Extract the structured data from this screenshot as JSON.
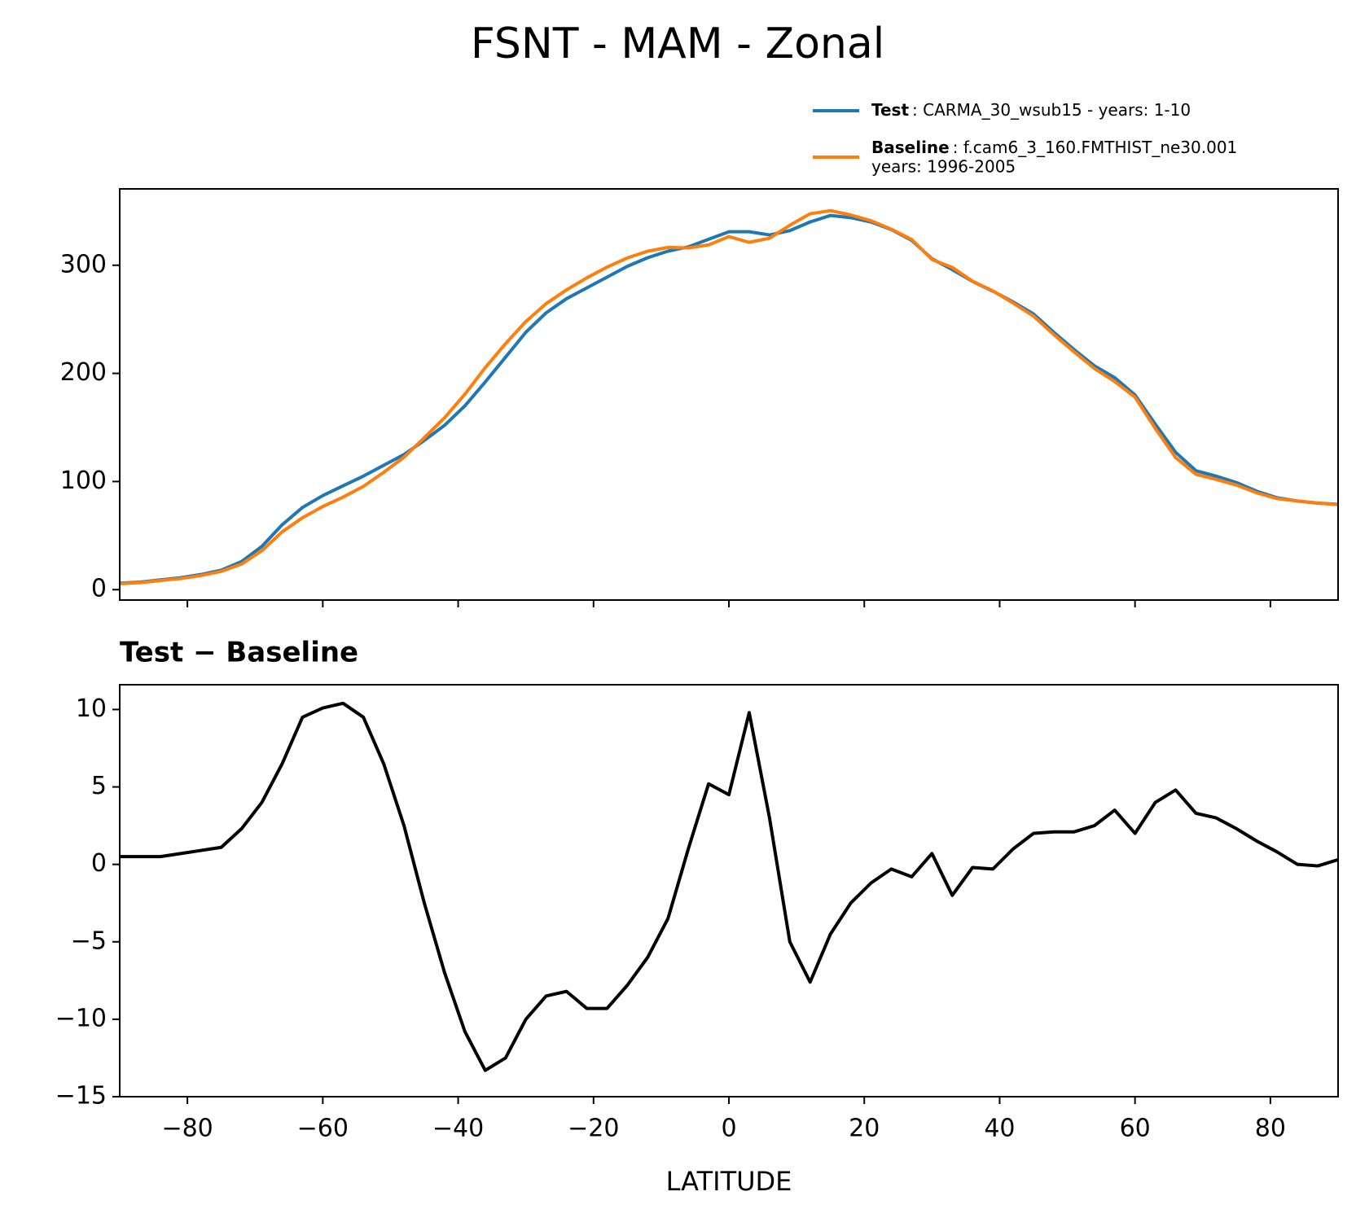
{
  "chart_data": [
    {
      "type": "line",
      "title": "FSNT - MAM - Zonal",
      "x": [
        -90,
        -87,
        -84,
        -81,
        -78,
        -75,
        -72,
        -69,
        -66,
        -63,
        -60,
        -57,
        -54,
        -51,
        -48,
        -45,
        -42,
        -39,
        -36,
        -33,
        -30,
        -27,
        -24,
        -21,
        -18,
        -15,
        -12,
        -9,
        -6,
        -3,
        0,
        3,
        6,
        9,
        12,
        15,
        18,
        21,
        24,
        27,
        30,
        33,
        36,
        39,
        42,
        45,
        48,
        51,
        54,
        57,
        60,
        63,
        66,
        69,
        72,
        75,
        78,
        81,
        84,
        87,
        90
      ],
      "series": [
        {
          "name": "Test",
          "description": [
            ": CARMA_30_wsub15 - years: 1-10"
          ],
          "color": "#1f77b4",
          "values": [
            6,
            7,
            9,
            11,
            14,
            18,
            26,
            40,
            60,
            76,
            87,
            96,
            105,
            115,
            125,
            138,
            152,
            170,
            192,
            215,
            238,
            256,
            269,
            279,
            289,
            299,
            307,
            313,
            317,
            324,
            331,
            331,
            328,
            332,
            340,
            346,
            344,
            340,
            333,
            323,
            306,
            296,
            285,
            276,
            266,
            255,
            238,
            222,
            207,
            196,
            180,
            153,
            127,
            110,
            105,
            99,
            91,
            85,
            82,
            80,
            79
          ]
        },
        {
          "name": "Baseline",
          "description": [
            ": f.cam6_3_160.FMTHIST_ne30.001",
            "years: 1996-2005"
          ],
          "color": "#ff7f0e",
          "values": [
            5.5,
            6.5,
            8.5,
            10.3,
            13.1,
            16.9,
            23.7,
            36,
            53.5,
            66.5,
            76.9,
            85.6,
            95.5,
            108.5,
            122.5,
            140.5,
            159,
            180.8,
            205.3,
            227.5,
            248,
            264.5,
            277.2,
            288.3,
            298.3,
            306.8,
            313,
            316.5,
            316,
            318.8,
            326.5,
            321.2,
            325,
            337,
            347.6,
            350.5,
            346.5,
            341.2,
            333.3,
            323.8,
            305.3,
            298,
            285.2,
            276.3,
            265,
            253,
            235.9,
            219.9,
            204.5,
            192.5,
            178,
            149,
            122.2,
            106.7,
            102,
            96.7,
            89.5,
            84.2,
            82,
            80.1,
            78.7
          ]
        }
      ],
      "xlim": [
        -90,
        90
      ],
      "xticks": [
        -80,
        -60,
        -40,
        -20,
        0,
        20,
        40,
        60,
        80
      ],
      "show_xtick_labels": false,
      "ylim": [
        -9.6,
        370.6
      ],
      "yticks": [
        0,
        100,
        200,
        300
      ]
    },
    {
      "type": "line",
      "title": "Test − Baseline",
      "xlabel": "LATITUDE",
      "x": [
        -90,
        -87,
        -84,
        -81,
        -78,
        -75,
        -72,
        -69,
        -66,
        -63,
        -60,
        -57,
        -54,
        -51,
        -48,
        -45,
        -42,
        -39,
        -36,
        -33,
        -30,
        -27,
        -24,
        -21,
        -18,
        -15,
        -12,
        -9,
        -6,
        -3,
        0,
        3,
        6,
        9,
        12,
        15,
        18,
        21,
        24,
        27,
        30,
        33,
        36,
        39,
        42,
        45,
        48,
        51,
        54,
        57,
        60,
        63,
        66,
        69,
        72,
        75,
        78,
        81,
        84,
        87,
        90
      ],
      "series": [
        {
          "color": "#000000",
          "values": [
            0.5,
            0.5,
            0.5,
            0.7,
            0.9,
            1.1,
            2.3,
            4.0,
            6.5,
            9.5,
            10.1,
            10.4,
            9.5,
            6.5,
            2.5,
            -2.5,
            -7,
            -10.8,
            -13.3,
            -12.5,
            -10,
            -8.5,
            -8.2,
            -9.3,
            -9.3,
            -7.8,
            -6,
            -3.5,
            1.0,
            5.2,
            4.5,
            9.8,
            3,
            -5,
            -7.6,
            -4.5,
            -2.5,
            -1.2,
            -0.3,
            -0.8,
            0.7,
            -2,
            -0.2,
            -0.3,
            1.0,
            2.0,
            2.1,
            2.1,
            2.5,
            3.5,
            2.0,
            4.0,
            4.8,
            3.3,
            3.0,
            2.3,
            1.5,
            0.8,
            0,
            -0.1,
            0.3
          ]
        }
      ],
      "xlim": [
        -90,
        90
      ],
      "xticks": [
        {
          "value": -80,
          "label": "−80"
        },
        {
          "value": -60,
          "label": "−60"
        },
        {
          "value": -40,
          "label": "−40"
        },
        {
          "value": -20,
          "label": "−20"
        },
        0,
        20,
        40,
        60,
        80
      ],
      "show_xtick_labels": true,
      "ylim": [
        -15,
        11.6
      ],
      "yticks": [
        {
          "value": -15,
          "label": "−15"
        },
        {
          "value": -10,
          "label": "−10"
        },
        {
          "value": -5,
          "label": "−5"
        },
        0,
        5,
        10
      ]
    }
  ]
}
